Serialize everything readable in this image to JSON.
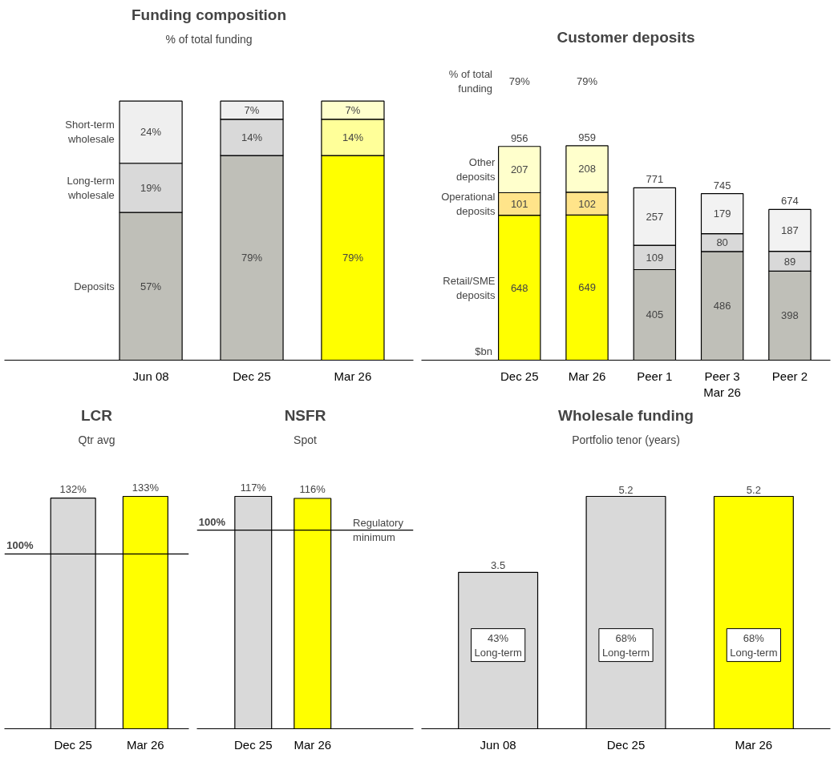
{
  "chart_data": [
    {
      "type": "bar",
      "title": "Funding composition",
      "subtitle": "% of total funding",
      "stacked": true,
      "tick_labels": "x",
      "categories": [
        "Jun 08",
        "Dec 25",
        "Mar 26"
      ],
      "series": [
        {
          "name": "Deposits",
          "values": [
            57,
            79,
            79
          ],
          "colors": [
            "#bfbfb8",
            "#bfbfb8",
            "#ffff00"
          ],
          "value_labels": [
            "57%",
            "79%",
            "79%"
          ]
        },
        {
          "name": "Long-term wholesale",
          "values": [
            19,
            14,
            14
          ],
          "colors": [
            "#d9d9d9",
            "#d9d9d9",
            "#ffff99"
          ],
          "value_labels": [
            "19%",
            "14%",
            "14%"
          ]
        },
        {
          "name": "Short-term wholesale",
          "values": [
            24,
            7,
            7
          ],
          "colors": [
            "#efefef",
            "#efefef",
            "#ffffcc"
          ],
          "value_labels": [
            "24%",
            "7%",
            "7%"
          ]
        }
      ]
    },
    {
      "type": "bar",
      "title": "Customer deposits",
      "ylabel": "$bn",
      "stacked": true,
      "tick_labels": "x",
      "data_labels": true,
      "categories": [
        "Dec 25",
        "Mar 26",
        "Peer 1",
        "Peer 3\nMar 26",
        "Peer 2"
      ],
      "series": [
        {
          "name": "Retail/SME deposits",
          "values": [
            648,
            649,
            405,
            486,
            398
          ],
          "colors": [
            "#ffff00",
            "#ffff00",
            "#bfbfb8",
            "#bfbfb8",
            "#bfbfb8"
          ]
        },
        {
          "name": "Operational deposits",
          "values": [
            101,
            102,
            109,
            80,
            89
          ],
          "colors": [
            "#ffe48a",
            "#ffe48a",
            "#d9d9d9",
            "#d9d9d9",
            "#d9d9d9"
          ]
        },
        {
          "name": "Other deposits",
          "values": [
            207,
            208,
            257,
            179,
            187
          ],
          "colors": [
            "#ffffcc",
            "#ffffcc",
            "#f2f2f2",
            "#f2f2f2",
            "#f2f2f2"
          ]
        }
      ],
      "totals": [
        "956",
        "959",
        "771",
        "745",
        "674"
      ],
      "annotations": [
        "% of total funding",
        "79%",
        "79%"
      ]
    },
    {
      "type": "bar",
      "title": "LCR",
      "subtitle": "Qtr avg",
      "tick_labels": "x",
      "categories": [
        "Dec 25",
        "Mar 26"
      ],
      "values": [
        132,
        133
      ],
      "colors": [
        "#d9d9d9",
        "#ffff00"
      ],
      "value_labels": [
        "132%",
        "133%"
      ],
      "ref_lines": [
        {
          "axis": "y",
          "value": 100,
          "label": "100%"
        }
      ]
    },
    {
      "type": "bar",
      "title": "NSFR",
      "subtitle": "Spot",
      "tick_labels": "x",
      "categories": [
        "Dec 25",
        "Mar 26"
      ],
      "values": [
        117,
        116
      ],
      "colors": [
        "#d9d9d9",
        "#ffff00"
      ],
      "value_labels": [
        "117%",
        "116%"
      ],
      "ref_lines": [
        {
          "axis": "y",
          "value": 100,
          "label": "100%"
        }
      ],
      "annotations": [
        "Regulatory minimum"
      ]
    },
    {
      "type": "bar",
      "title": "Wholesale funding",
      "subtitle": "Portfolio tenor (years)",
      "tick_labels": "x",
      "data_labels": true,
      "categories": [
        "Jun 08",
        "Dec 25",
        "Mar 26"
      ],
      "values": [
        3.5,
        5.2,
        5.2
      ],
      "colors": [
        "#d9d9d9",
        "#d9d9d9",
        "#ffff00"
      ],
      "annotations": [
        "43%\nLong-term",
        "68%\nLong-term",
        "68%\nLong-term"
      ]
    }
  ]
}
